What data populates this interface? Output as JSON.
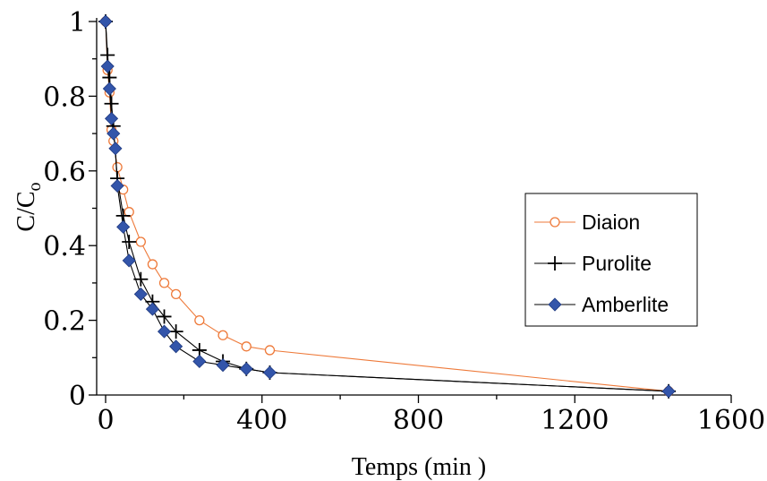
{
  "chart_data": {
    "type": "line",
    "xlabel": "Temps (min )",
    "ylabel_main": "C/C",
    "ylabel_sub": "o",
    "xlim": [
      0,
      1600
    ],
    "ylim": [
      0,
      1
    ],
    "x_ticks": [
      "0",
      "400",
      "800",
      "1200",
      "1600"
    ],
    "y_ticks": [
      "0",
      "0.2",
      "0.4",
      "0.6",
      "0.8",
      "1"
    ],
    "grid": false,
    "legend_position": "right",
    "series": [
      {
        "name": "Diaion",
        "color": "#ee7a3a",
        "marker": "circle-open",
        "x": [
          0,
          5,
          10,
          15,
          20,
          30,
          45,
          60,
          90,
          120,
          150,
          180,
          240,
          300,
          360,
          420,
          1440
        ],
        "y": [
          1,
          0.87,
          0.81,
          0.71,
          0.68,
          0.61,
          0.55,
          0.49,
          0.41,
          0.35,
          0.3,
          0.27,
          0.2,
          0.16,
          0.13,
          0.12,
          0.01
        ]
      },
      {
        "name": "Purolite",
        "color": "#000000",
        "marker": "plus",
        "x": [
          0,
          5,
          10,
          15,
          20,
          30,
          45,
          60,
          90,
          120,
          150,
          180,
          240,
          300,
          360,
          420,
          1440
        ],
        "y": [
          1,
          0.91,
          0.85,
          0.78,
          0.72,
          0.58,
          0.48,
          0.41,
          0.31,
          0.25,
          0.21,
          0.17,
          0.12,
          0.09,
          0.07,
          0.06,
          0.01
        ]
      },
      {
        "name": "Amberlite",
        "color": "#3355aa",
        "marker": "diamond",
        "x": [
          0,
          5,
          10,
          15,
          20,
          25,
          30,
          45,
          60,
          90,
          120,
          150,
          180,
          240,
          300,
          360,
          420,
          1440
        ],
        "y": [
          1,
          0.88,
          0.82,
          0.74,
          0.7,
          0.66,
          0.56,
          0.45,
          0.36,
          0.27,
          0.23,
          0.17,
          0.13,
          0.09,
          0.08,
          0.07,
          0.06,
          0.01
        ]
      }
    ]
  }
}
